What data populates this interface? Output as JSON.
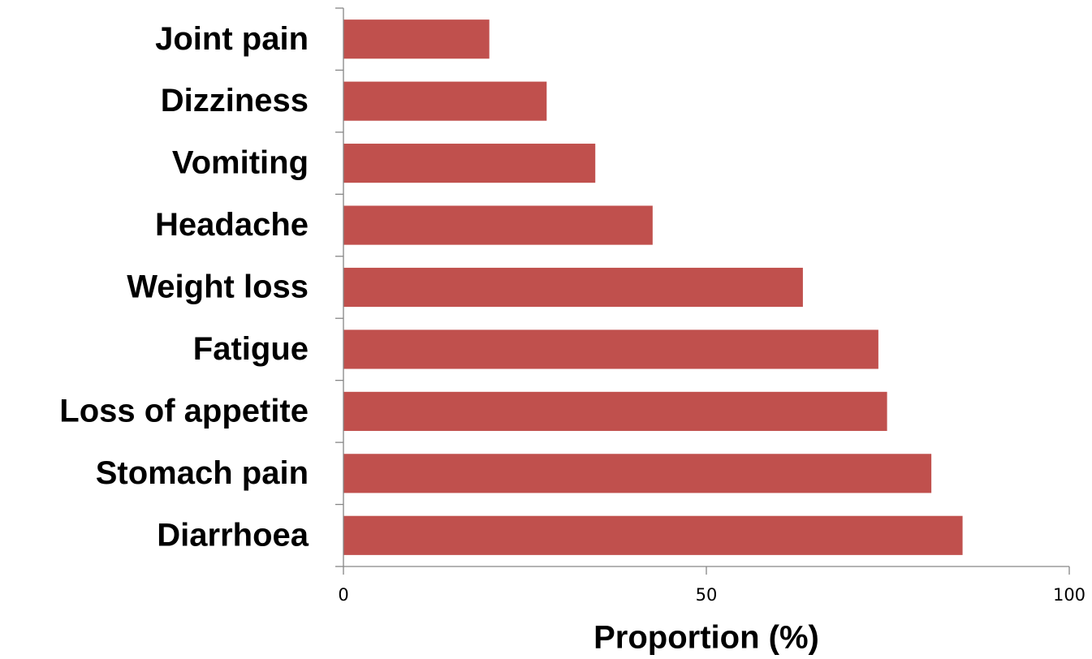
{
  "chart_data": {
    "type": "bar",
    "orientation": "horizontal",
    "x_label": "Proportion (%)",
    "categories": [
      "Joint pain",
      "Dizziness",
      "Vomiting",
      "Headache",
      "Weight loss",
      "Fatigue",
      "Loss of appetite",
      "Stomach pain",
      "Diarrhoea"
    ],
    "values": [
      20.1,
      28.0,
      34.7,
      42.6,
      63.3,
      73.7,
      74.9,
      81.0,
      85.3
    ],
    "color": "#c0504d",
    "xlim": [
      0,
      100
    ],
    "xticks": [
      0,
      50,
      100
    ]
  }
}
